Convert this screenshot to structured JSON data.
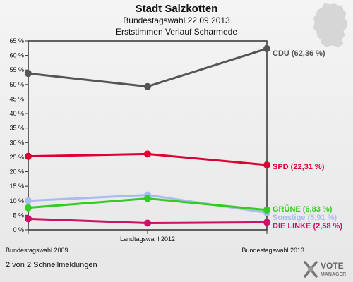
{
  "header": {
    "title": "Stadt Salzkotten",
    "subtitle": "Bundestagswahl 22.09.2013",
    "subtitle2": "Erststimmen Verlauf Scharmede"
  },
  "footer": {
    "note": "2 von 2 Schnellmeldungen"
  },
  "logo": {
    "text1": "VOTE",
    "text2": "MANAGER"
  },
  "chart_data": {
    "type": "line",
    "categories": [
      "Bundestagswahl 2009",
      "Landtagswahl 2012",
      "Bundestagswahl 2013"
    ],
    "ylim": [
      0,
      65
    ],
    "yticks": [
      0,
      5,
      10,
      15,
      20,
      25,
      30,
      35,
      40,
      45,
      50,
      55,
      60,
      65
    ],
    "ytick_suffix": " %",
    "grid": false,
    "series": [
      {
        "name": "CDU",
        "values": [
          53.8,
          49.3,
          62.36
        ],
        "end_label": "CDU (62,36 %)",
        "color": "#555555"
      },
      {
        "name": "SPD",
        "values": [
          25.3,
          26.1,
          22.31
        ],
        "end_label": "SPD (22,31 %)",
        "color": "#dd0033"
      },
      {
        "name": "Sonstige",
        "values": [
          10.0,
          12.0,
          5.91
        ],
        "end_label": "Sonstige (5,91 %)",
        "color": "#aabbee"
      },
      {
        "name": "GRÜNE",
        "values": [
          7.6,
          10.8,
          6.83
        ],
        "end_label": "GRÜNE (6,83 %)",
        "color": "#33cc22"
      },
      {
        "name": "DIE LINKE",
        "values": [
          3.8,
          2.3,
          2.58
        ],
        "end_label": "DIE LINKE (2,58 %)",
        "color": "#cc1166"
      }
    ]
  }
}
